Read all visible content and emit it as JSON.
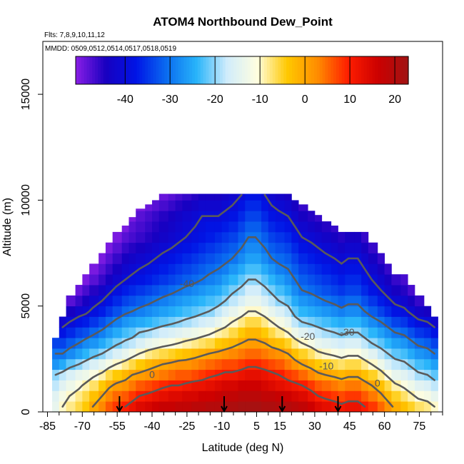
{
  "chart_data": {
    "type": "heatmap",
    "title": "ATOM4 Northbound Dew_Point",
    "flights_note": "Flts: 7,8,9,10,11,12",
    "dates_note": "MMDD: 0509,0512,0514,0517,0518,0519",
    "xlabel": "Latitude (deg N)",
    "ylabel": "Altitude (m)",
    "xlim": [
      -87,
      85
    ],
    "ylim": [
      0,
      17500
    ],
    "x_ticks": [
      -85,
      -70,
      -55,
      -40,
      -25,
      -10,
      5,
      15,
      30,
      45,
      60,
      75
    ],
    "x_tick_labels": [
      "-85",
      "-70",
      "-55",
      "-40",
      "-25",
      "-10",
      "5",
      "15",
      "30",
      "45",
      "60",
      "75"
    ],
    "x_minor_step": 5,
    "y_ticks": [
      0,
      5000,
      10000,
      15000
    ],
    "y_tick_labels": [
      "0",
      "5000",
      "10000",
      "15000"
    ],
    "colorbar": {
      "min": -51,
      "max": 23,
      "ticks": [
        -40,
        -30,
        -20,
        -10,
        0,
        10,
        20
      ],
      "tick_labels": [
        "-40",
        "-30",
        "-20",
        "-10",
        "0",
        "10",
        "20"
      ],
      "colors": [
        "#8a1ee6",
        "#1800c0",
        "#0014e6",
        "#0a6cf0",
        "#28b4fa",
        "#d0ecfb",
        "#fffee0",
        "#ffc800",
        "#ff8c00",
        "#ff1e00",
        "#cc0000",
        "#a01414"
      ]
    },
    "altitude_bin_m": 500,
    "columns": [
      {
        "lat": -85,
        "top": 1500,
        "values": [
          null,
          null,
          null,
          null,
          null,
          null
        ]
      },
      {
        "lat": -83,
        "top": 3500,
        "values": [
          -14,
          -15,
          -18,
          -20,
          -27,
          -30,
          -34
        ]
      },
      {
        "lat": -80,
        "top": 4500,
        "values": [
          -10,
          -12,
          -15,
          -18,
          -25,
          -30,
          -34,
          -38,
          -42
        ]
      },
      {
        "lat": -77,
        "top": 5500,
        "values": [
          -8,
          -10,
          -13,
          -16,
          -22,
          -28,
          -32,
          -36,
          -40,
          -44,
          -48
        ]
      },
      {
        "lat": -73,
        "top": 6000,
        "values": [
          -6,
          -8,
          -11,
          -14,
          -20,
          -26,
          -30,
          -34,
          -38,
          -42,
          -46,
          -49
        ]
      },
      {
        "lat": -70,
        "top": 6500,
        "values": [
          -4,
          -6,
          -9,
          -13,
          -18,
          -24,
          -28,
          -33,
          -37,
          -41,
          -44,
          -47,
          -50
        ]
      },
      {
        "lat": -67,
        "top": 7000,
        "values": [
          0,
          -3,
          -7,
          -11,
          -16,
          -22,
          -27,
          -31,
          -35,
          -39,
          -42,
          -45,
          -48,
          -50
        ]
      },
      {
        "lat": -63,
        "top": 7500,
        "values": [
          3,
          0,
          -4,
          -9,
          -14,
          -20,
          -25,
          -29,
          -33,
          -37,
          -40,
          -43,
          -46,
          -48,
          -50
        ]
      },
      {
        "lat": -60,
        "top": 8000,
        "values": [
          6,
          3,
          -1,
          -6,
          -12,
          -18,
          -23,
          -27,
          -31,
          -35,
          -38,
          -41,
          -44,
          -46,
          -48,
          -50
        ]
      },
      {
        "lat": -57,
        "top": 8500,
        "values": [
          8,
          5,
          1,
          -4,
          -10,
          -16,
          -21,
          -25,
          -29,
          -33,
          -36,
          -39,
          -42,
          -44,
          -46,
          -48,
          -50
        ]
      },
      {
        "lat": -53,
        "top": 8800,
        "values": [
          10,
          6,
          2,
          -2,
          -8,
          -14,
          -19,
          -23,
          -27,
          -31,
          -34,
          -37,
          -40,
          -42,
          -44,
          -46,
          -48,
          -50
        ]
      },
      {
        "lat": -50,
        "top": 9200,
        "values": [
          12,
          8,
          4,
          0,
          -6,
          -12,
          -18,
          -22,
          -26,
          -30,
          -33,
          -36,
          -39,
          -41,
          -43,
          -45,
          -47,
          -48,
          -50
        ]
      },
      {
        "lat": -47,
        "top": 9600,
        "values": [
          14,
          10,
          6,
          1,
          -4,
          -10,
          -16,
          -20,
          -25,
          -29,
          -32,
          -35,
          -38,
          -40,
          -42,
          -44,
          -46,
          -47,
          -48,
          -50
        ]
      },
      {
        "lat": -43,
        "top": 9800,
        "values": [
          15,
          11,
          7,
          2,
          -2,
          -8,
          -14,
          -19,
          -24,
          -28,
          -31,
          -34,
          -37,
          -39,
          -41,
          -43,
          -45,
          -46,
          -47,
          -49
        ]
      },
      {
        "lat": -40,
        "top": 10000,
        "values": [
          16,
          12,
          8,
          3,
          -1,
          -7,
          -13,
          -18,
          -23,
          -27,
          -30,
          -33,
          -36,
          -38,
          -40,
          -42,
          -44,
          -45,
          -46,
          -48,
          -50
        ]
      },
      {
        "lat": -37,
        "top": 10300,
        "values": [
          17,
          13,
          9,
          4,
          0,
          -6,
          -12,
          -17,
          -22,
          -26,
          -29,
          -32,
          -35,
          -37,
          -39,
          -41,
          -43,
          -44,
          -45,
          -47,
          -49
        ]
      },
      {
        "lat": -33,
        "top": 10300,
        "values": [
          17,
          14,
          10,
          5,
          1,
          -5,
          -11,
          -16,
          -21,
          -25,
          -28,
          -31,
          -34,
          -36,
          -38,
          -40,
          -42,
          -43,
          -44,
          -46,
          -48
        ]
      },
      {
        "lat": -30,
        "top": 10300,
        "values": [
          18,
          14,
          10,
          6,
          2,
          -4,
          -10,
          -15,
          -20,
          -24,
          -27,
          -30,
          -33,
          -35,
          -37,
          -39,
          -41,
          -42,
          -43,
          -45,
          -47
        ]
      },
      {
        "lat": -27,
        "top": 10300,
        "values": [
          18,
          15,
          11,
          6,
          2,
          -3,
          -9,
          -14,
          -19,
          -23,
          -26,
          -29,
          -32,
          -34,
          -36,
          -38,
          -40,
          -41,
          -42,
          -44,
          -46
        ]
      },
      {
        "lat": -23,
        "top": 10300,
        "values": [
          19,
          15,
          12,
          7,
          3,
          -2,
          -8,
          -13,
          -18,
          -22,
          -25,
          -28,
          -31,
          -33,
          -35,
          -37,
          -39,
          -40,
          -41,
          -43,
          -45
        ]
      },
      {
        "lat": -20,
        "top": 10300,
        "values": [
          19,
          16,
          12,
          8,
          4,
          -1,
          -7,
          -12,
          -17,
          -21,
          -24,
          -27,
          -30,
          -32,
          -34,
          -36,
          -38,
          -39,
          -40,
          -42,
          -44
        ]
      },
      {
        "lat": -17,
        "top": 10300,
        "values": [
          20,
          16,
          13,
          9,
          5,
          0,
          -6,
          -11,
          -16,
          -20,
          -23,
          -26,
          -29,
          -31,
          -33,
          -35,
          -37,
          -38,
          -40,
          -42,
          -44
        ]
      },
      {
        "lat": -13,
        "top": 10300,
        "values": [
          20,
          17,
          14,
          10,
          6,
          1,
          -4,
          -9,
          -14,
          -18,
          -22,
          -25,
          -28,
          -30,
          -32,
          -34,
          -36,
          -38,
          -40,
          -42,
          -44
        ]
      },
      {
        "lat": -10,
        "top": 10300,
        "values": [
          21,
          18,
          15,
          11,
          7,
          2,
          -3,
          -8,
          -12,
          -16,
          -20,
          -23,
          -26,
          -29,
          -31,
          -33,
          -35,
          -37,
          -39,
          -41,
          -43
        ]
      },
      {
        "lat": -7,
        "top": 10300,
        "values": [
          21,
          18,
          15,
          11,
          7,
          3,
          -2,
          -6,
          -10,
          -14,
          -18,
          -21,
          -24,
          -27,
          -30,
          -32,
          -34,
          -36,
          -38,
          -40,
          -42
        ]
      },
      {
        "lat": -3,
        "top": 10300,
        "values": [
          22,
          19,
          16,
          12,
          8,
          4,
          0,
          -4,
          -8,
          -12,
          -16,
          -19,
          -22,
          -25,
          -28,
          -30,
          -32,
          -34,
          -36,
          -38,
          -40
        ]
      },
      {
        "lat": 0,
        "top": 10300,
        "values": [
          22,
          19,
          16,
          13,
          9,
          5,
          1,
          -2,
          -6,
          -10,
          -14,
          -17,
          -20,
          -23,
          -26,
          -28,
          -30,
          -32,
          -34,
          -36,
          -38
        ]
      },
      {
        "lat": 3,
        "top": 10300,
        "values": [
          22,
          19,
          16,
          13,
          9,
          5,
          1,
          -2,
          -6,
          -10,
          -14,
          -17,
          -20,
          -23,
          -26,
          -28,
          -30,
          -32,
          -34,
          -36,
          -38
        ]
      },
      {
        "lat": 7,
        "top": 10300,
        "values": [
          21,
          18,
          15,
          12,
          8,
          4,
          0,
          -4,
          -8,
          -12,
          -16,
          -19,
          -22,
          -25,
          -28,
          -30,
          -32,
          -34,
          -36,
          -38,
          -40
        ]
      },
      {
        "lat": 10,
        "top": 10300,
        "values": [
          21,
          18,
          14,
          11,
          7,
          3,
          -2,
          -6,
          -10,
          -14,
          -18,
          -21,
          -24,
          -27,
          -30,
          -32,
          -34,
          -36,
          -38,
          -40,
          -42
        ]
      },
      {
        "lat": 13,
        "top": 10300,
        "values": [
          20,
          17,
          13,
          10,
          6,
          2,
          -3,
          -8,
          -12,
          -16,
          -20,
          -23,
          -26,
          -29,
          -31,
          -33,
          -35,
          -37,
          -39,
          -41,
          -43
        ]
      },
      {
        "lat": 17,
        "top": 10300,
        "values": [
          20,
          16,
          12,
          8,
          4,
          0,
          -5,
          -10,
          -14,
          -18,
          -22,
          -25,
          -28,
          -30,
          -32,
          -34,
          -36,
          -38,
          -40,
          -42,
          -44
        ]
      },
      {
        "lat": 20,
        "top": 10000,
        "values": [
          19,
          15,
          11,
          7,
          2,
          -3,
          -8,
          -13,
          -18,
          -22,
          -25,
          -28,
          -30,
          -32,
          -34,
          -36,
          -38,
          -40,
          -42,
          -44
        ]
      },
      {
        "lat": 23,
        "top": 9800,
        "values": [
          18,
          14,
          10,
          5,
          0,
          -5,
          -10,
          -15,
          -20,
          -24,
          -27,
          -30,
          -32,
          -34,
          -36,
          -38,
          -40,
          -42,
          -44,
          -46
        ]
      },
      {
        "lat": 27,
        "top": 9500,
        "values": [
          16,
          12,
          8,
          3,
          -2,
          -7,
          -12,
          -17,
          -21,
          -25,
          -28,
          -31,
          -33,
          -35,
          -37,
          -39,
          -41,
          -43,
          -45
        ]
      },
      {
        "lat": 30,
        "top": 9300,
        "values": [
          14,
          10,
          6,
          1,
          -4,
          -9,
          -14,
          -18,
          -22,
          -26,
          -29,
          -32,
          -34,
          -36,
          -38,
          -40,
          -42,
          -44,
          -46
        ]
      },
      {
        "lat": 33,
        "top": 9000,
        "values": [
          13,
          9,
          5,
          0,
          -5,
          -10,
          -15,
          -19,
          -23,
          -27,
          -30,
          -33,
          -35,
          -37,
          -39,
          -41,
          -43,
          -45
        ]
      },
      {
        "lat": 37,
        "top": 8800,
        "values": [
          12,
          8,
          4,
          -1,
          -6,
          -11,
          -16,
          -20,
          -24,
          -28,
          -31,
          -34,
          -36,
          -38,
          -40,
          -42,
          -44,
          -46
        ]
      },
      {
        "lat": 40,
        "top": 8500,
        "values": [
          11,
          7,
          3,
          -2,
          -7,
          -12,
          -17,
          -21,
          -25,
          -29,
          -32,
          -35,
          -37,
          -39,
          -41,
          -43,
          -45
        ]
      },
      {
        "lat": 43,
        "top": 8500,
        "values": [
          12,
          8,
          4,
          -1,
          -6,
          -11,
          -16,
          -20,
          -24,
          -28,
          -31,
          -34,
          -36,
          -38,
          -40,
          -42,
          -44
        ]
      },
      {
        "lat": 47,
        "top": 8500,
        "values": [
          12,
          8,
          4,
          -1,
          -6,
          -11,
          -16,
          -20,
          -24,
          -28,
          -31,
          -34,
          -36,
          -38,
          -40,
          -42,
          -44
        ]
      },
      {
        "lat": 50,
        "top": 8500,
        "values": [
          10,
          6,
          2,
          -3,
          -8,
          -13,
          -18,
          -22,
          -26,
          -30,
          -33,
          -36,
          -38,
          -40,
          -42,
          -44,
          -46
        ]
      },
      {
        "lat": 53,
        "top": 8000,
        "values": [
          8,
          4,
          0,
          -5,
          -10,
          -15,
          -20,
          -24,
          -28,
          -32,
          -35,
          -38,
          -40,
          -42,
          -44,
          -46
        ]
      },
      {
        "lat": 57,
        "top": 7500,
        "values": [
          5,
          1,
          -3,
          -8,
          -13,
          -18,
          -22,
          -26,
          -30,
          -34,
          -37,
          -40,
          -42,
          -44,
          -46
        ]
      },
      {
        "lat": 60,
        "top": 7000,
        "values": [
          2,
          -2,
          -6,
          -11,
          -16,
          -20,
          -24,
          -28,
          -32,
          -36,
          -39,
          -42,
          -44,
          -46
        ]
      },
      {
        "lat": 63,
        "top": 6500,
        "values": [
          -1,
          -5,
          -9,
          -14,
          -18,
          -22,
          -26,
          -30,
          -34,
          -38,
          -41,
          -44,
          -46
        ]
      },
      {
        "lat": 67,
        "top": 6500,
        "values": [
          -3,
          -7,
          -11,
          -15,
          -19,
          -23,
          -27,
          -31,
          -35,
          -39,
          -42,
          -45,
          -47
        ]
      },
      {
        "lat": 70,
        "top": 6000,
        "values": [
          -5,
          -9,
          -13,
          -17,
          -21,
          -25,
          -29,
          -33,
          -37,
          -41,
          -44,
          -47
        ]
      },
      {
        "lat": 73,
        "top": 5500,
        "values": [
          -7,
          -11,
          -15,
          -19,
          -23,
          -27,
          -31,
          -35,
          -39,
          -43,
          -46
        ]
      },
      {
        "lat": 77,
        "top": 5000,
        "values": [
          -8,
          -12,
          -16,
          -20,
          -24,
          -28,
          -32,
          -36,
          -40,
          -44
        ]
      },
      {
        "lat": 80,
        "top": 4500,
        "values": [
          -10,
          -14,
          -18,
          -22,
          -26,
          -30,
          -34,
          -38,
          -42
        ]
      }
    ],
    "contour_labels": [
      {
        "text": "-40",
        "x": -25,
        "y": 5900
      },
      {
        "text": "-20",
        "x": 27,
        "y": 3400
      },
      {
        "text": "-30",
        "x": 44,
        "y": 3600
      },
      {
        "text": "-10",
        "x": 35,
        "y": 2000
      },
      {
        "text": "0",
        "x": 57,
        "y": 1200
      },
      {
        "text": "0",
        "x": -40,
        "y": 1600
      }
    ],
    "flight_markers": [
      -54,
      -9,
      16,
      40
    ]
  }
}
